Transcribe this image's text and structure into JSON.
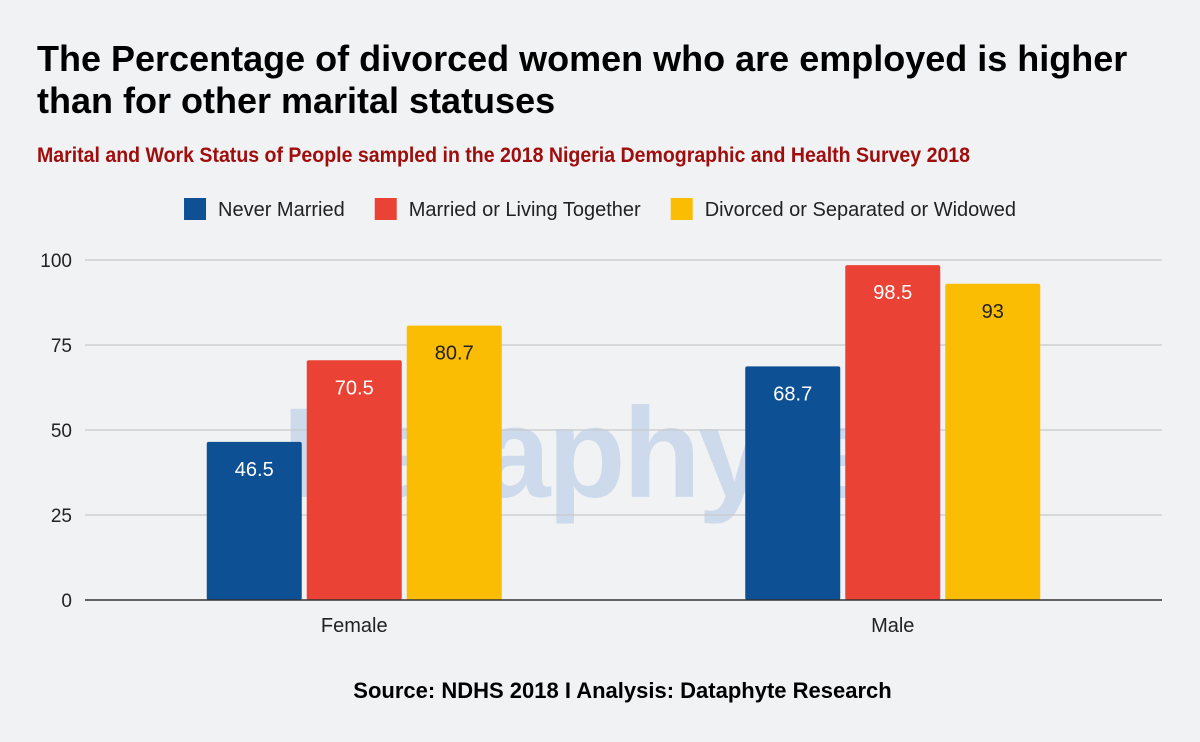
{
  "title": "The Percentage of divorced women who are employed is higher than for other marital statuses",
  "subtitle": "Marital and Work Status of People sampled in the 2018 Nigeria Demographic and Health Survey 2018",
  "source": "Source: NDHS 2018 I Analysis: Dataphyte Research",
  "watermark": "Dataphyte",
  "colors": {
    "never_married": "#0d5093",
    "married": "#ea4335",
    "divorced": "#fbbc04",
    "gridline": "#c7c9cc",
    "axis": "#333333",
    "label_light": "#ffffff",
    "label_dark": "#222222"
  },
  "chart_data": {
    "type": "bar",
    "categories": [
      "Female",
      "Male"
    ],
    "series": [
      {
        "name": "Never Married",
        "values": [
          46.5,
          68.7
        ],
        "color": "#0d5093",
        "label_color": "#ffffff"
      },
      {
        "name": "Married or Living Together",
        "values": [
          70.5,
          98.5
        ],
        "color": "#ea4335",
        "label_color": "#ffffff"
      },
      {
        "name": "Divorced or Separated or Widowed",
        "values": [
          80.7,
          93
        ],
        "color": "#fbbc04",
        "label_color": "#222222"
      }
    ],
    "yticks": [
      0,
      25,
      50,
      75,
      100
    ],
    "ylim": [
      0,
      100
    ],
    "grid": true,
    "legend": "top"
  }
}
